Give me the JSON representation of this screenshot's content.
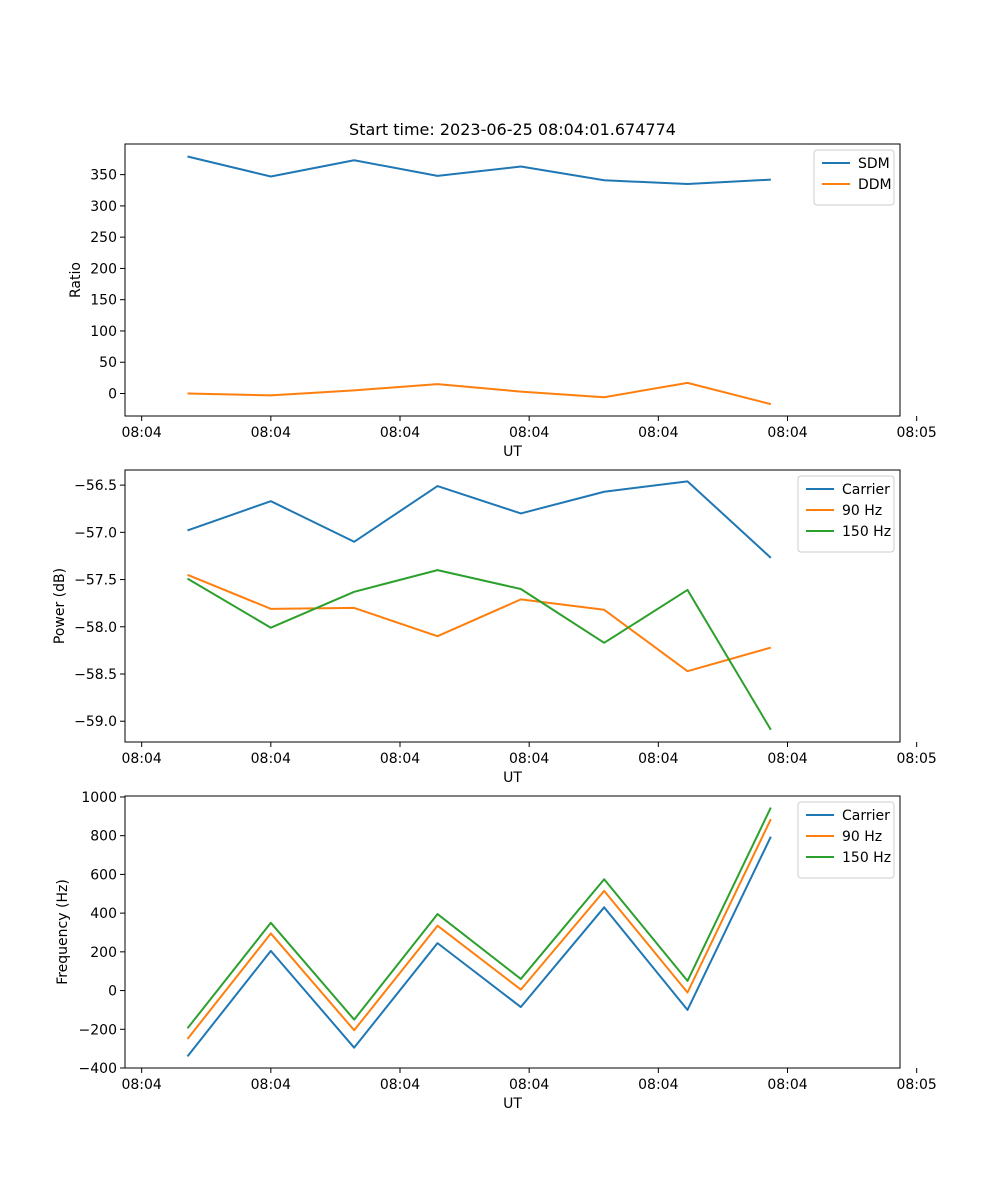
{
  "chart_data": [
    {
      "type": "line",
      "title": "Start time: 2023-06-25 08:04:01.674774",
      "xlabel": "UT",
      "ylabel": "Ratio",
      "xlim": [
        0,
        9.3
      ],
      "ylim": [
        -36,
        399
      ],
      "x": [
        0.75,
        1.75,
        2.75,
        3.75,
        4.75,
        5.75,
        6.75,
        7.75
      ],
      "xticks": [
        0.2,
        1.75,
        3.3,
        4.85,
        6.4,
        7.95,
        9.5
      ],
      "xtick_labels": [
        "08:04",
        "08:04",
        "08:04",
        "08:04",
        "08:04",
        "08:04",
        "08:05"
      ],
      "yticks": [
        0,
        50,
        100,
        150,
        200,
        250,
        300,
        350
      ],
      "ytick_labels": [
        "0",
        "50",
        "100",
        "150",
        "200",
        "250",
        "300",
        "350"
      ],
      "legend": "upper-right",
      "series": [
        {
          "name": "SDM",
          "color": "#1f77b4",
          "values": [
            379,
            347,
            373,
            348,
            363,
            341,
            335,
            342
          ]
        },
        {
          "name": "DDM",
          "color": "#ff7f0e",
          "values": [
            0,
            -3,
            5,
            15,
            3,
            -6,
            17,
            -17
          ]
        }
      ]
    },
    {
      "type": "line",
      "title": "",
      "xlabel": "UT",
      "ylabel": "Power (dB)",
      "xlim": [
        0,
        9.3
      ],
      "ylim": [
        -59.22,
        -56.34
      ],
      "x": [
        0.75,
        1.75,
        2.75,
        3.75,
        4.75,
        5.75,
        6.75,
        7.75
      ],
      "xticks": [
        0.2,
        1.75,
        3.3,
        4.85,
        6.4,
        7.95,
        9.5
      ],
      "xtick_labels": [
        "08:04",
        "08:04",
        "08:04",
        "08:04",
        "08:04",
        "08:04",
        "08:05"
      ],
      "yticks": [
        -59.0,
        -58.5,
        -58.0,
        -57.5,
        -57.0,
        -56.5
      ],
      "ytick_labels": [
        "−59.0",
        "−58.5",
        "−58.0",
        "−57.5",
        "−57.0",
        "−56.5"
      ],
      "legend": "upper-right",
      "series": [
        {
          "name": "Carrier",
          "color": "#1f77b4",
          "values": [
            -56.98,
            -56.67,
            -57.1,
            -56.51,
            -56.8,
            -56.57,
            -56.46,
            -57.27
          ]
        },
        {
          "name": "90 Hz",
          "color": "#ff7f0e",
          "values": [
            -57.45,
            -57.81,
            -57.8,
            -58.1,
            -57.71,
            -57.82,
            -58.47,
            -58.22
          ]
        },
        {
          "name": "150 Hz",
          "color": "#2ca02c",
          "values": [
            -57.49,
            -58.01,
            -57.63,
            -57.4,
            -57.6,
            -58.17,
            -57.61,
            -59.09
          ]
        }
      ]
    },
    {
      "type": "line",
      "title": "",
      "xlabel": "UT",
      "ylabel": "Frequency (Hz)",
      "xlim": [
        0,
        9.3
      ],
      "ylim": [
        -400,
        1005
      ],
      "x": [
        0.75,
        1.75,
        2.75,
        3.75,
        4.75,
        5.75,
        6.75,
        7.75
      ],
      "xticks": [
        0.2,
        1.75,
        3.3,
        4.85,
        6.4,
        7.95,
        9.5
      ],
      "xtick_labels": [
        "08:04",
        "08:04",
        "08:04",
        "08:04",
        "08:04",
        "08:04",
        "08:05"
      ],
      "yticks": [
        -400,
        -200,
        0,
        200,
        400,
        600,
        800,
        1000
      ],
      "ytick_labels": [
        "−400",
        "−200",
        "0",
        "200",
        "400",
        "600",
        "800",
        "1000"
      ],
      "legend": "upper-right",
      "series": [
        {
          "name": "Carrier",
          "color": "#1f77b4",
          "values": [
            -340,
            205,
            -295,
            245,
            -85,
            430,
            -100,
            795
          ]
        },
        {
          "name": "90 Hz",
          "color": "#ff7f0e",
          "values": [
            -250,
            295,
            -205,
            335,
            5,
            515,
            -10,
            885
          ]
        },
        {
          "name": "150 Hz",
          "color": "#2ca02c",
          "values": [
            -195,
            350,
            -150,
            395,
            60,
            575,
            50,
            945
          ]
        }
      ]
    }
  ]
}
